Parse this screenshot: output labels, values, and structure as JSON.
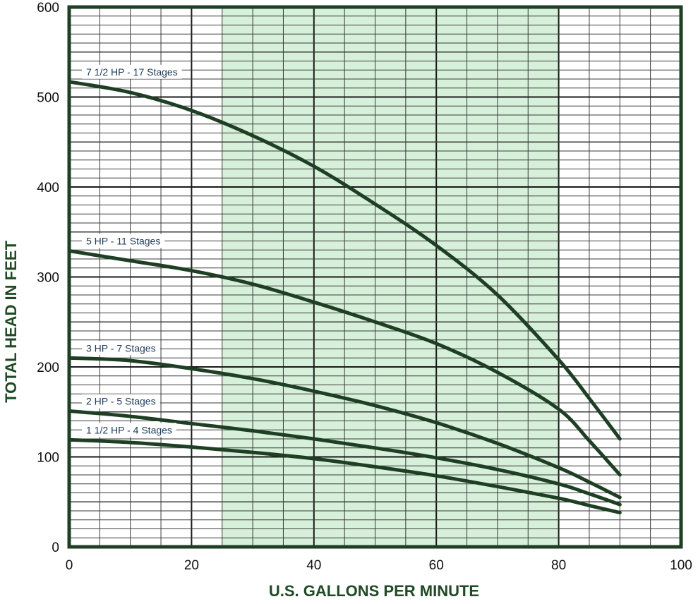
{
  "chart_data": {
    "type": "line",
    "xlabel": "U.S. GALLONS PER MINUTE",
    "ylabel": "TOTAL HEAD IN FEET",
    "xlim": [
      0,
      100
    ],
    "ylim": [
      0,
      600
    ],
    "xticks": [
      "0",
      "20",
      "40",
      "60",
      "80",
      "100"
    ],
    "yticks": [
      "0",
      "100",
      "200",
      "300",
      "400",
      "500",
      "600"
    ],
    "grid": true,
    "shaded_region": {
      "x_from": 25,
      "x_to": 80
    },
    "colors": {
      "curve": "#1e3f24",
      "grid_major": "#1a1a1a",
      "grid_minor": "#3a3a3a",
      "frame": "#1e3f24",
      "shade": "#d6f0d9",
      "axis_title": "#1f4a24",
      "label_text": "#1c3b5a"
    },
    "series": [
      {
        "name": "7 1/2 HP - 17 Stages",
        "x": [
          0,
          10,
          20,
          30,
          40,
          50,
          60,
          70,
          80,
          85,
          90
        ],
        "y": [
          517,
          505,
          485,
          457,
          423,
          381,
          335,
          280,
          208,
          165,
          120
        ]
      },
      {
        "name": "5 HP - 11 Stages",
        "x": [
          0,
          10,
          20,
          30,
          40,
          50,
          60,
          70,
          80,
          85,
          90
        ],
        "y": [
          329,
          318,
          307,
          292,
          272,
          250,
          226,
          194,
          153,
          118,
          80
        ]
      },
      {
        "name": "3 HP - 7 Stages",
        "x": [
          0,
          10,
          20,
          30,
          40,
          50,
          60,
          70,
          80,
          85,
          90
        ],
        "y": [
          210,
          207,
          198,
          187,
          173,
          157,
          138,
          115,
          88,
          72,
          55
        ]
      },
      {
        "name": "2 HP - 5 Stages",
        "x": [
          0,
          10,
          20,
          30,
          40,
          50,
          60,
          70,
          80,
          85,
          90
        ],
        "y": [
          151,
          145,
          137,
          129,
          120,
          110,
          99,
          86,
          70,
          59,
          47
        ]
      },
      {
        "name": "1 1/2 HP - 4 Stages",
        "x": [
          0,
          10,
          20,
          30,
          40,
          50,
          60,
          70,
          80,
          85,
          90
        ],
        "y": [
          119,
          116,
          111,
          105,
          98,
          89,
          79,
          67,
          54,
          46,
          38
        ]
      }
    ]
  }
}
